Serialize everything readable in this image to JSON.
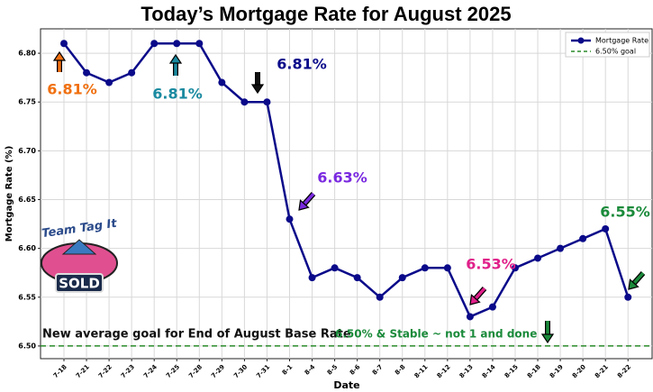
{
  "chart_data": {
    "type": "line",
    "title": "Today’s Mortgage Rate for August 2025",
    "x_label": "Date",
    "y_label": "Mortgage Rate (%)",
    "categories": [
      "7-18",
      "7-21",
      "7-22",
      "7-23",
      "7-24",
      "7-25",
      "7-28",
      "7-29",
      "7-30",
      "7-31",
      "8-1",
      "8-4",
      "8-5",
      "8-6",
      "8-7",
      "8-8",
      "8-11",
      "8-12",
      "8-13",
      "8-14",
      "8-15",
      "8-18",
      "8-19",
      "8-20",
      "8-21",
      "8-22"
    ],
    "series": [
      {
        "name": "Mortgage Rate",
        "color": "#0a0a8a",
        "values": [
          6.81,
          6.78,
          6.77,
          6.78,
          6.81,
          6.81,
          6.81,
          6.77,
          6.75,
          6.75,
          6.63,
          6.57,
          6.58,
          6.57,
          6.55,
          6.57,
          6.58,
          6.58,
          6.53,
          6.54,
          6.58,
          6.59,
          6.6,
          6.61,
          6.62,
          6.55
        ]
      }
    ],
    "goal": {
      "name": "6.50% goal",
      "value": 6.5,
      "color": "#2a8a2a"
    },
    "ylim": [
      6.487,
      6.825
    ],
    "yticks": [
      {
        "value": 6.5,
        "label": "6.50"
      },
      {
        "value": 6.55,
        "label": "6.55"
      },
      {
        "value": 6.6,
        "label": "6.60"
      },
      {
        "value": 6.65,
        "label": "6.65"
      },
      {
        "value": 6.7,
        "label": "6.70"
      },
      {
        "value": 6.75,
        "label": "6.75"
      },
      {
        "value": 6.8,
        "label": "6.80"
      }
    ],
    "grid": true,
    "legend": "upper right",
    "annotations": [
      {
        "text": "6.81%",
        "color": "#f07010"
      },
      {
        "text": "6.81%",
        "color": "#1a8aa0"
      },
      {
        "text": "6.81%",
        "color": "#0a0a8a"
      },
      {
        "text": "6.63%",
        "color": "#7a2ae0"
      },
      {
        "text": "6.53%",
        "color": "#e0208a"
      },
      {
        "text": "6.55%",
        "color": "#1a8a3a"
      },
      {
        "text": "New average goal for End of August Base Rate",
        "color": "#111111"
      },
      {
        "text": "6.50% & Stable ~ not 1 and done",
        "color": "#1a8a3a"
      }
    ],
    "logo_text": [
      "Team Tag It",
      "SOLD"
    ]
  }
}
